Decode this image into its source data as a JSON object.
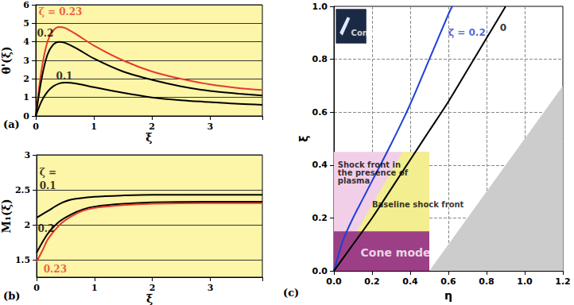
{
  "chart_data": [
    {
      "type": "line",
      "panel_label": "(a)",
      "x_label": "ξ",
      "y_label": "θ'(ξ)",
      "xlim": [
        0,
        3.9
      ],
      "xticks": [
        0,
        1,
        2,
        3
      ],
      "ylim": [
        0,
        6
      ],
      "yticks": [
        0,
        1,
        2,
        3,
        4,
        5,
        6
      ],
      "grid": "y",
      "series": [
        {
          "name": "ζ = 0.23",
          "color": "#e53b2c",
          "label_at": [
            0.05,
            5.6
          ],
          "x": [
            0,
            0.1,
            0.2,
            0.3,
            0.4,
            0.5,
            0.7,
            1,
            1.5,
            2,
            2.5,
            3,
            3.5,
            3.9
          ],
          "values": [
            0,
            2.5,
            4.0,
            4.6,
            4.8,
            4.75,
            4.4,
            3.8,
            3.0,
            2.4,
            2.0,
            1.7,
            1.5,
            1.4
          ]
        },
        {
          "name": "0.2",
          "color": "#000000",
          "label_at": [
            0.02,
            4.45
          ],
          "x": [
            0,
            0.1,
            0.2,
            0.3,
            0.4,
            0.5,
            0.7,
            1,
            1.5,
            2,
            2.5,
            3,
            3.5,
            3.9
          ],
          "values": [
            0,
            2.0,
            3.3,
            3.85,
            4.0,
            3.95,
            3.65,
            3.1,
            2.4,
            1.95,
            1.6,
            1.35,
            1.2,
            1.1
          ]
        },
        {
          "name": "0.1",
          "color": "#000000",
          "label_at": [
            0.35,
            2.15
          ],
          "x": [
            0,
            0.1,
            0.2,
            0.3,
            0.4,
            0.5,
            0.7,
            1,
            1.5,
            2,
            2.5,
            3,
            3.5,
            3.9
          ],
          "values": [
            0,
            0.8,
            1.3,
            1.6,
            1.75,
            1.8,
            1.75,
            1.55,
            1.25,
            1.0,
            0.85,
            0.75,
            0.65,
            0.6
          ]
        }
      ]
    },
    {
      "type": "line",
      "panel_label": "(b)",
      "x_label": "ξ",
      "y_label": "M₁(ξ)",
      "xlim": [
        0,
        3.9
      ],
      "xticks": [
        0,
        1,
        2,
        3
      ],
      "ylim": [
        1.25,
        3
      ],
      "yticks": [
        1.5,
        2,
        2.5,
        3
      ],
      "grid": "y",
      "annotations": [
        {
          "text": "ζ =",
          "x": 0.05,
          "y": 2.75,
          "color": "#000000"
        }
      ],
      "series": [
        {
          "name": "0.1",
          "color": "#000000",
          "label_at": [
            0.05,
            2.56
          ],
          "x": [
            0,
            0.2,
            0.4,
            0.6,
            1,
            1.5,
            2,
            3,
            3.9
          ],
          "values": [
            2.1,
            2.2,
            2.3,
            2.36,
            2.4,
            2.42,
            2.43,
            2.43,
            2.43
          ]
        },
        {
          "name": "0.2",
          "color": "#000000",
          "label_at": [
            0.02,
            1.94
          ],
          "x": [
            0,
            0.1,
            0.2,
            0.4,
            0.6,
            0.8,
            1,
            1.5,
            2,
            3,
            3.9
          ],
          "values": [
            1.6,
            1.75,
            1.88,
            2.05,
            2.15,
            2.22,
            2.26,
            2.3,
            2.32,
            2.33,
            2.33
          ]
        },
        {
          "name": "0.23",
          "color": "#e53b2c",
          "label_at": [
            0.12,
            1.36
          ],
          "x": [
            0,
            0.1,
            0.2,
            0.4,
            0.6,
            0.8,
            1,
            1.5,
            2,
            3,
            3.9
          ],
          "values": [
            1.47,
            1.63,
            1.8,
            2.0,
            2.12,
            2.2,
            2.24,
            2.28,
            2.3,
            2.31,
            2.31
          ]
        }
      ]
    },
    {
      "type": "line",
      "panel_label": "(c)",
      "x_label": "η",
      "y_label": "ξ",
      "xlim": [
        0,
        1.2
      ],
      "xticks": [
        {
          "value": 0,
          "label": "0.0"
        },
        0.2,
        0.4,
        0.6,
        0.8,
        {
          "value": 1,
          "label": "1.0"
        },
        1.2
      ],
      "ylim": [
        0,
        1
      ],
      "yticks": [
        {
          "value": 0,
          "label": "0.0"
        },
        0.2,
        0.4,
        0.6,
        0.8,
        {
          "value": 1,
          "label": "1.0"
        }
      ],
      "grid": true,
      "regions": [
        {
          "points": [
            [
              0.5,
              0
            ],
            [
              1.2,
              0.7
            ],
            [
              1.2,
              0
            ]
          ],
          "color": "#cccccc"
        },
        {
          "points": [
            [
              0,
              0
            ],
            [
              0.5,
              0
            ],
            [
              0.5,
              0.45
            ],
            [
              0,
              0.45
            ]
          ],
          "color": "#f2cfe9"
        },
        {
          "points": [
            [
              0.12,
              0.15
            ],
            [
              0.5,
              0.15
            ],
            [
              0.5,
              0.45
            ],
            [
              0.36,
              0.45
            ]
          ],
          "color": "#f3ee8f"
        },
        {
          "points": [
            [
              0,
              0
            ],
            [
              0.5,
              0
            ],
            [
              0.5,
              0.15
            ],
            [
              0,
              0.15
            ]
          ],
          "color": "#9c3f86"
        },
        {
          "points": [
            [
              0.01,
              0.86
            ],
            [
              0.17,
              0.86
            ],
            [
              0.17,
              0.99
            ],
            [
              0.01,
              0.99
            ]
          ],
          "color": "#1b2a44"
        },
        {
          "points": [
            [
              0.03,
              0.9
            ],
            [
              0.07,
              0.96
            ],
            [
              0.085,
              0.955
            ],
            [
              0.045,
              0.89
            ]
          ],
          "color": "#dfe8ff"
        }
      ],
      "annotations": [
        {
          "text": "Cone model",
          "x": 0.09,
          "y": 0.9,
          "color": "#ffffff"
        },
        {
          "text": "Shock front in the presence of plasma",
          "x": 0.02,
          "y": 0.37,
          "color": "#000000"
        },
        {
          "text": "Baseline shock front",
          "x": 0.2,
          "y": 0.25,
          "color": "#000000"
        },
        {
          "text": "Cone model",
          "x": 0.14,
          "y": 0.07,
          "color": "#ffffff"
        }
      ],
      "series": [
        {
          "name": "ζ = 0.2",
          "color": "#1f3fd6",
          "label_at": [
            0.6,
            0.9
          ],
          "x": [
            0,
            0.02,
            0.05,
            0.1,
            0.15,
            0.2,
            0.3,
            0.4,
            0.5,
            0.6,
            0.62
          ],
          "values": [
            0,
            0.05,
            0.12,
            0.2,
            0.27,
            0.34,
            0.48,
            0.63,
            0.8,
            0.97,
            1.0
          ]
        },
        {
          "name": "0",
          "color": "#000000",
          "label_at": [
            0.87,
            0.92
          ],
          "x": [
            0,
            0.05,
            0.1,
            0.2,
            0.3,
            0.4,
            0.5,
            0.6,
            0.7,
            0.8,
            0.9
          ],
          "values": [
            0,
            0.05,
            0.1,
            0.2,
            0.31,
            0.42,
            0.53,
            0.64,
            0.76,
            0.88,
            1.0
          ]
        }
      ]
    }
  ]
}
